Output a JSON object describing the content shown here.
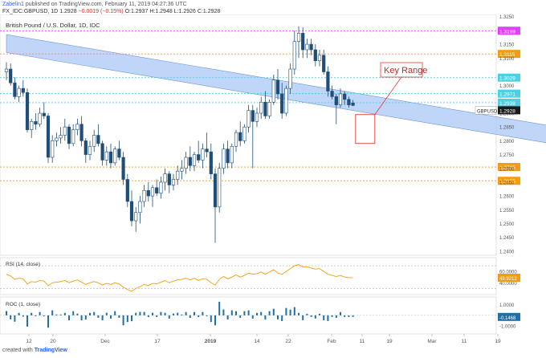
{
  "header": {
    "user": "Zabelin1",
    "published": "published on TradingView.com, February 11, 2019 04:27:36 UTC",
    "symbol": "FX_IDC:GBPUSD, 1D",
    "last": "1.2928",
    "change": "−0.0019 (−0.15%)",
    "ohlc": "O:1.2937 H:1.2948 L:1.2926 C:1.2928"
  },
  "footer": {
    "left": "created with",
    "brand": "TradingView"
  },
  "colors": {
    "up": "#ffffff",
    "down": "#1f4e79",
    "candle_border": "#1f4e79",
    "channel": "#aac8f5",
    "rsi_line": "#f39c12",
    "roc_bar": "#1f6fa8",
    "magenta_line": "#e040fb",
    "orange_line": "#f39c12",
    "cyan_line": "#4dd0e1",
    "key_box": "#e53935"
  },
  "chart_data": {
    "type": "candlestick",
    "title": "British Pound / U.S. Dollar, 1D, IDC",
    "symbol_label": "GBPUSD",
    "last_price": "1.2928",
    "ylim": [
      1.2385,
      1.3258
    ],
    "price_ticks": [
      "1.3250",
      "1.3150",
      "1.3100",
      "1.3000",
      "1.2900",
      "1.2850",
      "1.2800",
      "1.2750",
      "1.2700",
      "1.2650",
      "1.2600",
      "1.2550",
      "1.2500",
      "1.2450",
      "1.2400"
    ],
    "x_ticks": [
      "12",
      "20",
      "Dec",
      "17",
      "2019",
      "14",
      "22",
      "Feb",
      "11",
      "19",
      "Mar",
      "11",
      "19"
    ],
    "levels": [
      {
        "price": 1.3199,
        "label": "1.3199",
        "color": "magenta"
      },
      {
        "price": 1.3115,
        "label": "1.3115",
        "color": "orange"
      },
      {
        "price": 1.3029,
        "label": "1.3029",
        "color": "cyan"
      },
      {
        "price": 1.2971,
        "label": "1.2971",
        "color": "cyan"
      },
      {
        "price": 1.2938,
        "label": "1.2938",
        "color": "cyan"
      },
      {
        "price": 1.2705,
        "label": "1.2705",
        "color": "orange"
      },
      {
        "price": 1.2655,
        "label": "1.2655",
        "color": "orange"
      }
    ],
    "channel": {
      "upper": [
        {
          "bar": 0,
          "price": 1.3185
        },
        {
          "bar": 160,
          "price": 1.2779
        }
      ],
      "lower": [
        {
          "bar": 0,
          "price": 1.312
        },
        {
          "bar": 160,
          "price": 1.2715
        }
      ]
    },
    "annotation": "Key Range",
    "ohlc": [
      [
        1.305,
        1.3085,
        1.302,
        1.306
      ],
      [
        1.306,
        1.308,
        1.3,
        1.301
      ],
      [
        1.301,
        1.303,
        1.295,
        1.296
      ],
      [
        1.296,
        1.3,
        1.294,
        1.299
      ],
      [
        1.299,
        1.302,
        1.296,
        1.2975
      ],
      [
        1.2975,
        1.299,
        1.283,
        1.284
      ],
      [
        1.284,
        1.288,
        1.281,
        1.287
      ],
      [
        1.287,
        1.29,
        1.284,
        1.286
      ],
      [
        1.286,
        1.292,
        1.285,
        1.29
      ],
      [
        1.29,
        1.294,
        1.288,
        1.289
      ],
      [
        1.289,
        1.29,
        1.272,
        1.274
      ],
      [
        1.274,
        1.282,
        1.272,
        1.28
      ],
      [
        1.28,
        1.283,
        1.278,
        1.281
      ],
      [
        1.281,
        1.285,
        1.279,
        1.282
      ],
      [
        1.282,
        1.288,
        1.28,
        1.285
      ],
      [
        1.285,
        1.286,
        1.277,
        1.279
      ],
      [
        1.279,
        1.286,
        1.278,
        1.284
      ],
      [
        1.284,
        1.288,
        1.282,
        1.286
      ],
      [
        1.286,
        1.289,
        1.278,
        1.28
      ],
      [
        1.28,
        1.281,
        1.272,
        1.275
      ],
      [
        1.275,
        1.28,
        1.273,
        1.278
      ],
      [
        1.278,
        1.284,
        1.276,
        1.282
      ],
      [
        1.282,
        1.286,
        1.278,
        1.279
      ],
      [
        1.279,
        1.28,
        1.271,
        1.273
      ],
      [
        1.273,
        1.278,
        1.271,
        1.276
      ],
      [
        1.276,
        1.279,
        1.27,
        1.272
      ],
      [
        1.272,
        1.278,
        1.271,
        1.277
      ],
      [
        1.277,
        1.28,
        1.273,
        1.274
      ],
      [
        1.274,
        1.276,
        1.264,
        1.266
      ],
      [
        1.266,
        1.268,
        1.256,
        1.258
      ],
      [
        1.258,
        1.262,
        1.249,
        1.251
      ],
      [
        1.251,
        1.256,
        1.247,
        1.254
      ],
      [
        1.254,
        1.26,
        1.25,
        1.258
      ],
      [
        1.258,
        1.264,
        1.256,
        1.262
      ],
      [
        1.262,
        1.265,
        1.258,
        1.26
      ],
      [
        1.26,
        1.264,
        1.256,
        1.263
      ],
      [
        1.263,
        1.266,
        1.26,
        1.261
      ],
      [
        1.261,
        1.267,
        1.259,
        1.265
      ],
      [
        1.265,
        1.27,
        1.262,
        1.268
      ],
      [
        1.268,
        1.269,
        1.261,
        1.264
      ],
      [
        1.264,
        1.268,
        1.262,
        1.266
      ],
      [
        1.266,
        1.271,
        1.264,
        1.269
      ],
      [
        1.269,
        1.273,
        1.266,
        1.27
      ],
      [
        1.27,
        1.276,
        1.268,
        1.274
      ],
      [
        1.274,
        1.278,
        1.269,
        1.271
      ],
      [
        1.271,
        1.276,
        1.269,
        1.275
      ],
      [
        1.275,
        1.28,
        1.272,
        1.273
      ],
      [
        1.273,
        1.279,
        1.27,
        1.277
      ],
      [
        1.277,
        1.283,
        1.274,
        1.276
      ],
      [
        1.276,
        1.279,
        1.266,
        1.268
      ],
      [
        1.268,
        1.27,
        1.243,
        1.256
      ],
      [
        1.256,
        1.272,
        1.254,
        1.27
      ],
      [
        1.27,
        1.279,
        1.268,
        1.277
      ],
      [
        1.277,
        1.28,
        1.27,
        1.272
      ],
      [
        1.272,
        1.279,
        1.27,
        1.278
      ],
      [
        1.278,
        1.284,
        1.276,
        1.283
      ],
      [
        1.283,
        1.287,
        1.278,
        1.28
      ],
      [
        1.28,
        1.286,
        1.279,
        1.285
      ],
      [
        1.285,
        1.293,
        1.283,
        1.291
      ],
      [
        1.291,
        1.293,
        1.27,
        1.287
      ],
      [
        1.287,
        1.292,
        1.285,
        1.29
      ],
      [
        1.29,
        1.296,
        1.288,
        1.294
      ],
      [
        1.294,
        1.298,
        1.288,
        1.289
      ],
      [
        1.289,
        1.295,
        1.288,
        1.294
      ],
      [
        1.294,
        1.304,
        1.293,
        1.302
      ],
      [
        1.302,
        1.306,
        1.295,
        1.297
      ],
      [
        1.297,
        1.301,
        1.288,
        1.29
      ],
      [
        1.29,
        1.3,
        1.289,
        1.299
      ],
      [
        1.299,
        1.308,
        1.297,
        1.306
      ],
      [
        1.306,
        1.32,
        1.304,
        1.316
      ],
      [
        1.316,
        1.3215,
        1.31,
        1.319
      ],
      [
        1.319,
        1.3212,
        1.31,
        1.313
      ],
      [
        1.313,
        1.317,
        1.31,
        1.315
      ],
      [
        1.315,
        1.317,
        1.311,
        1.313
      ],
      [
        1.313,
        1.315,
        1.307,
        1.309
      ],
      [
        1.309,
        1.313,
        1.307,
        1.311
      ],
      [
        1.311,
        1.313,
        1.304,
        1.305
      ],
      [
        1.305,
        1.307,
        1.296,
        1.298
      ],
      [
        1.298,
        1.3,
        1.295,
        1.296
      ],
      [
        1.296,
        1.297,
        1.286,
        1.293
      ],
      [
        1.293,
        1.299,
        1.292,
        1.297
      ],
      [
        1.297,
        1.298,
        1.293,
        1.295
      ],
      [
        1.295,
        1.296,
        1.292,
        1.293
      ],
      [
        1.2937,
        1.2948,
        1.2926,
        1.2928
      ]
    ],
    "rsi": {
      "label": "RSI (14, close)",
      "value": "48.9212",
      "ticks": [
        "60.0000",
        "40.0000"
      ],
      "ylim": [
        22,
        80
      ],
      "values": [
        55,
        52,
        46,
        48,
        47,
        38,
        42,
        41,
        44,
        43,
        35,
        40,
        41,
        42,
        44,
        40,
        43,
        45,
        41,
        37,
        40,
        42,
        40,
        36,
        39,
        37,
        40,
        38,
        32,
        28,
        25,
        30,
        33,
        37,
        35,
        39,
        38,
        41,
        44,
        40,
        43,
        45,
        46,
        48,
        45,
        48,
        44,
        47,
        46,
        40,
        36,
        46,
        51,
        47,
        50,
        54,
        50,
        53,
        57,
        55,
        56,
        59,
        55,
        59,
        63,
        57,
        55,
        60,
        65,
        70,
        72,
        68,
        68,
        66,
        64,
        65,
        60,
        55,
        53,
        51,
        53,
        50,
        49,
        48.9
      ]
    },
    "roc": {
      "label": "ROC (1, close)",
      "value": "-0.1468",
      "ticks": [
        "1.0000",
        "-1.0000"
      ],
      "ylim": [
        -1.6,
        1.5
      ],
      "values": [
        0.4,
        -0.38,
        -0.6,
        0.23,
        -0.12,
        -1.06,
        0.23,
        -0.08,
        0.31,
        -0.08,
        -1.16,
        0.47,
        0.08,
        0.08,
        0.23,
        -0.47,
        0.39,
        0.16,
        -0.47,
        -0.39,
        0.23,
        0.31,
        -0.23,
        -0.47,
        0.24,
        -0.31,
        0.39,
        -0.23,
        -0.94,
        -0.63,
        -0.55,
        0.24,
        0.32,
        0.32,
        -0.16,
        0.24,
        -0.16,
        0.32,
        0.24,
        -0.31,
        0.16,
        0.24,
        0.08,
        0.31,
        -0.24,
        0.31,
        -0.16,
        0.31,
        -0.08,
        -0.63,
        -0.94,
        1.28,
        0.55,
        -0.39,
        0.47,
        0.39,
        -0.23,
        0.39,
        0.47,
        -0.31,
        0.23,
        0.31,
        -0.39,
        0.39,
        0.62,
        -0.38,
        -0.54,
        0.69,
        0.54,
        0.77,
        0.23,
        -0.46,
        0.15,
        -0.15,
        -0.3,
        0.15,
        -0.46,
        -0.54,
        -0.15,
        -0.23,
        0.31,
        -0.15,
        -0.15,
        -0.15
      ]
    }
  }
}
